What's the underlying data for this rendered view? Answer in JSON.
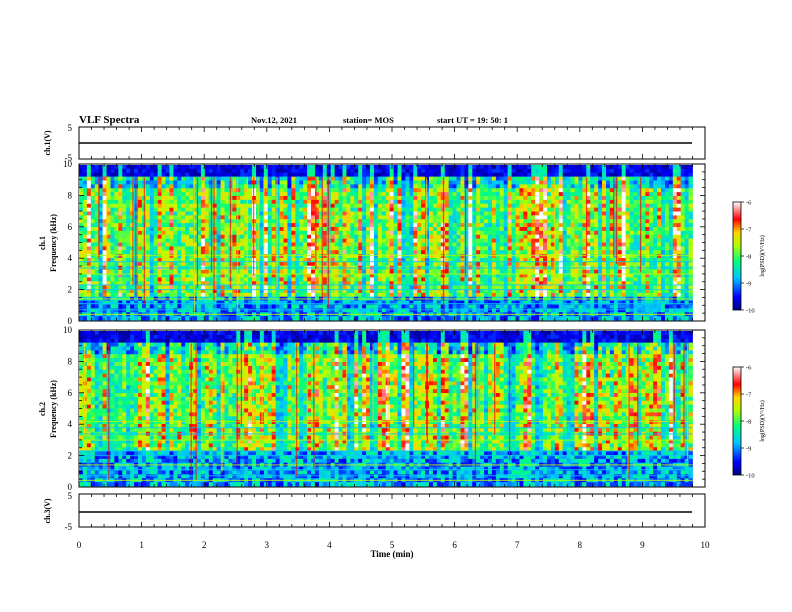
{
  "header": {
    "title": "VLF Spectra",
    "date": "Nov.12, 2021",
    "station": "station= MOS",
    "start_ut": "start  UT =   19: 50: 1"
  },
  "chart_data": [
    {
      "type": "line",
      "name": "ch1-waveform",
      "ylabel": "ch.1(V)",
      "ylim": [
        -5,
        5
      ],
      "yticks": [
        "5",
        "-5"
      ],
      "x": [
        0,
        10
      ],
      "y": [
        0,
        0
      ],
      "xlim": [
        0,
        10
      ]
    },
    {
      "type": "heatmap",
      "name": "ch1-spectrogram",
      "ylabel_line1": "ch.1",
      "ylabel_line2": "Frequency (kHz)",
      "ylim": [
        0,
        10
      ],
      "yticks": [
        "0",
        "2",
        "4",
        "6",
        "8",
        "10"
      ],
      "xlim": [
        0,
        10
      ],
      "data_extent_x": [
        0,
        9.8
      ],
      "colorbar": {
        "label": "log(PSD)(V²/Hz)",
        "range": [
          -10,
          -6
        ],
        "ticks": [
          "-6",
          "-7",
          "-8",
          "-9",
          "-10"
        ]
      }
    },
    {
      "type": "heatmap",
      "name": "ch2-spectrogram",
      "ylabel_line1": "ch.2",
      "ylabel_line2": "Frequency (kHz)",
      "ylim": [
        0,
        10
      ],
      "yticks": [
        "0",
        "2",
        "4",
        "6",
        "8",
        "10"
      ],
      "xlim": [
        0,
        10
      ],
      "data_extent_x": [
        0,
        9.8
      ],
      "colorbar": {
        "label": "log(PSD)(V²/Hz)",
        "range": [
          -10,
          -6
        ],
        "ticks": [
          "-6",
          "-7",
          "-8",
          "-9",
          "-10"
        ]
      }
    },
    {
      "type": "line",
      "name": "ch3-waveform",
      "ylabel": "ch.3(V)",
      "ylim": [
        -5,
        5
      ],
      "yticks": [
        "5",
        "-5"
      ],
      "x": [
        0,
        10
      ],
      "y": [
        0,
        0
      ],
      "xlim": [
        0,
        10
      ],
      "xlabel": "Time  (min)",
      "xticks": [
        "0",
        "1",
        "2",
        "3",
        "4",
        "5",
        "6",
        "7",
        "8",
        "9",
        "10"
      ]
    }
  ],
  "colors": {
    "spectrum_low": "#00007f",
    "spectrum_mid": "#00ff7f",
    "spectrum_high": "#ff0000",
    "spectrum_top": "#ffffff"
  }
}
